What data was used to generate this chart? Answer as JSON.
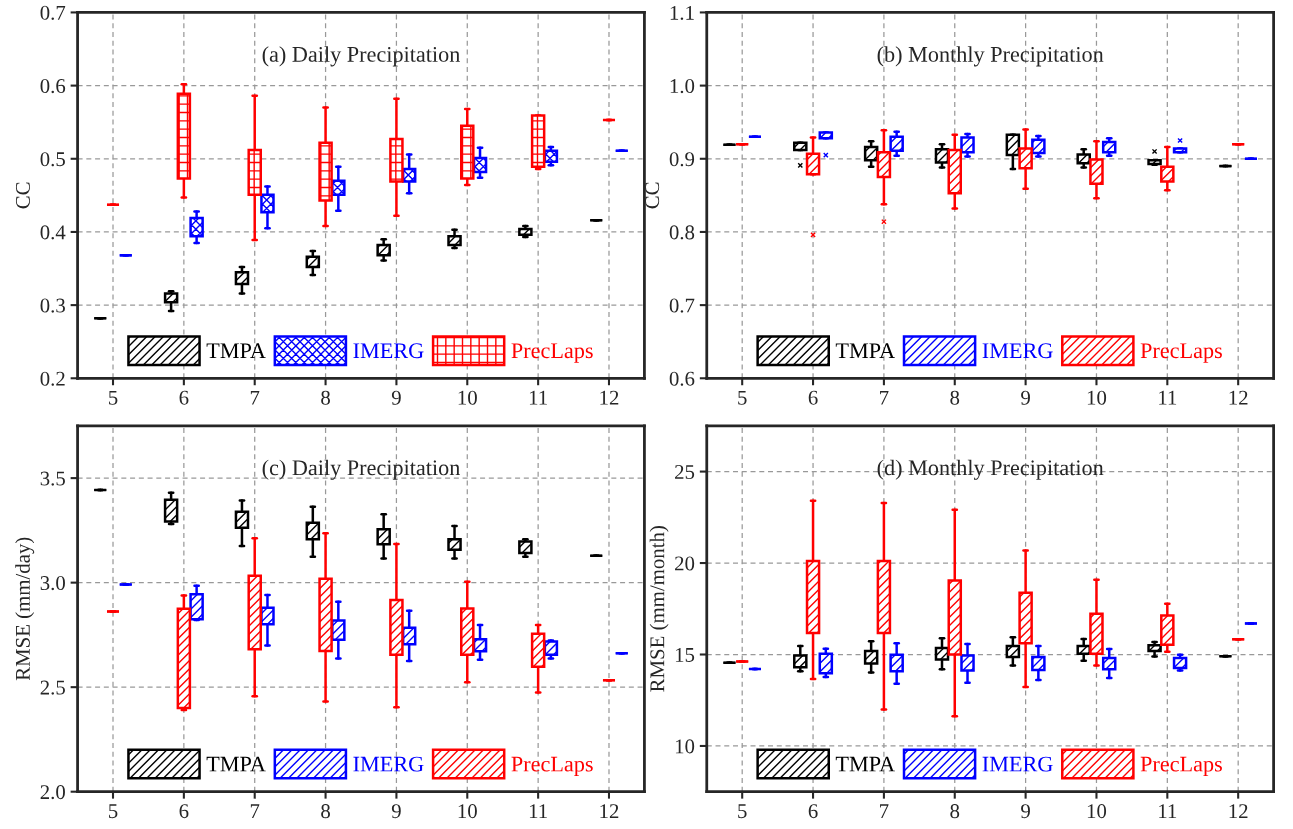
{
  "chart_data": [
    {
      "type": "box",
      "title": "(a) Daily Precipitation",
      "ylabel": "CC",
      "categories": [
        "5",
        "6",
        "7",
        "8",
        "9",
        "10",
        "11",
        "12"
      ],
      "ylim": [
        0.2,
        0.7
      ],
      "yticks": [
        {
          "value": 0.2,
          "label": "0.2"
        },
        {
          "value": 0.3,
          "label": "0.3"
        },
        {
          "value": 0.4,
          "label": "0.4"
        },
        {
          "value": 0.5,
          "label": "0.5"
        },
        {
          "value": 0.6,
          "label": "0.6"
        },
        {
          "value": 0.7,
          "label": "0.7"
        }
      ],
      "grid": true,
      "legend": "bottom",
      "series": [
        {
          "name": "TMPA",
          "color": "#000000",
          "boxes": [
            {
              "low": 0.282,
              "q1": 0.282,
              "median": 0.282,
              "q3": 0.282,
              "high": 0.282
            },
            {
              "low": 0.292,
              "q1": 0.304,
              "median": 0.31,
              "q3": 0.316,
              "high": 0.319
            },
            {
              "low": 0.316,
              "q1": 0.329,
              "median": 0.34,
              "q3": 0.345,
              "high": 0.352
            },
            {
              "low": 0.341,
              "q1": 0.352,
              "median": 0.359,
              "q3": 0.366,
              "high": 0.374
            },
            {
              "low": 0.361,
              "q1": 0.368,
              "median": 0.375,
              "q3": 0.382,
              "high": 0.39
            },
            {
              "low": 0.378,
              "q1": 0.382,
              "median": 0.388,
              "q3": 0.394,
              "high": 0.403
            },
            {
              "low": 0.393,
              "q1": 0.396,
              "median": 0.399,
              "q3": 0.404,
              "high": 0.408
            },
            {
              "low": 0.416,
              "q1": 0.416,
              "median": 0.416,
              "q3": 0.416,
              "high": 0.416
            }
          ]
        },
        {
          "name": "IMERG",
          "color": "#0000ff",
          "boxes": [
            {
              "low": 0.368,
              "q1": 0.368,
              "median": 0.368,
              "q3": 0.368,
              "high": 0.368
            },
            {
              "low": 0.385,
              "q1": 0.394,
              "median": 0.406,
              "q3": 0.419,
              "high": 0.428
            },
            {
              "low": 0.405,
              "q1": 0.427,
              "median": 0.442,
              "q3": 0.451,
              "high": 0.462
            },
            {
              "low": 0.429,
              "q1": 0.451,
              "median": 0.461,
              "q3": 0.47,
              "high": 0.489
            },
            {
              "low": 0.453,
              "q1": 0.469,
              "median": 0.477,
              "q3": 0.486,
              "high": 0.506
            },
            {
              "low": 0.474,
              "q1": 0.482,
              "median": 0.491,
              "q3": 0.501,
              "high": 0.515
            },
            {
              "low": 0.491,
              "q1": 0.496,
              "median": 0.505,
              "q3": 0.511,
              "high": 0.516
            },
            {
              "low": 0.511,
              "q1": 0.511,
              "median": 0.511,
              "q3": 0.511,
              "high": 0.511
            }
          ]
        },
        {
          "name": "PrecLaps",
          "color": "#ff0000",
          "boxes": [
            {
              "low": 0.437,
              "q1": 0.437,
              "median": 0.437,
              "q3": 0.437,
              "high": 0.437
            },
            {
              "low": 0.447,
              "q1": 0.473,
              "median": 0.538,
              "q3": 0.589,
              "high": 0.602
            },
            {
              "low": 0.389,
              "q1": 0.451,
              "median": 0.486,
              "q3": 0.512,
              "high": 0.586
            },
            {
              "low": 0.408,
              "q1": 0.443,
              "median": 0.464,
              "q3": 0.522,
              "high": 0.57
            },
            {
              "low": 0.422,
              "q1": 0.469,
              "median": 0.486,
              "q3": 0.527,
              "high": 0.582
            },
            {
              "low": 0.464,
              "q1": 0.473,
              "median": 0.505,
              "q3": 0.545,
              "high": 0.568
            },
            {
              "low": 0.486,
              "q1": 0.489,
              "median": 0.537,
              "q3": 0.559,
              "high": 0.559
            },
            {
              "low": 0.553,
              "q1": 0.553,
              "median": 0.553,
              "q3": 0.553,
              "high": 0.553
            }
          ]
        }
      ]
    },
    {
      "type": "box",
      "title": "(b) Monthly Precipitation",
      "ylabel": "CC",
      "categories": [
        "5",
        "6",
        "7",
        "8",
        "9",
        "10",
        "11",
        "12"
      ],
      "ylim": [
        0.6,
        1.1
      ],
      "yticks": [
        {
          "value": 0.6,
          "label": "0.6"
        },
        {
          "value": 0.7,
          "label": "0.7"
        },
        {
          "value": 0.8,
          "label": "0.8"
        },
        {
          "value": 0.9,
          "label": "0.9"
        },
        {
          "value": 1.0,
          "label": "1.0"
        },
        {
          "value": 1.1,
          "label": "1.1"
        }
      ],
      "grid": true,
      "legend": "bottom",
      "series": [
        {
          "name": "TMPA",
          "color": "#000000",
          "boxes": [
            {
              "low": 0.919,
              "q1": 0.919,
              "median": 0.919,
              "q3": 0.919,
              "high": 0.919
            },
            {
              "low": 0.912,
              "q1": 0.912,
              "median": 0.919,
              "q3": 0.922,
              "high": 0.922,
              "outliers": [
                0.891
              ]
            },
            {
              "low": 0.889,
              "q1": 0.898,
              "median": 0.909,
              "q3": 0.916,
              "high": 0.924
            },
            {
              "low": 0.888,
              "q1": 0.895,
              "median": 0.905,
              "q3": 0.913,
              "high": 0.92
            },
            {
              "low": 0.886,
              "q1": 0.905,
              "median": 0.91,
              "q3": 0.933,
              "high": 0.933
            },
            {
              "low": 0.888,
              "q1": 0.894,
              "median": 0.901,
              "q3": 0.906,
              "high": 0.913
            },
            {
              "low": 0.892,
              "q1": 0.893,
              "median": 0.896,
              "q3": 0.898,
              "high": 0.898,
              "outliers": [
                0.91
              ]
            },
            {
              "low": 0.89,
              "q1": 0.89,
              "median": 0.89,
              "q3": 0.89,
              "high": 0.89
            }
          ]
        },
        {
          "name": "IMERG",
          "color": "#0000ff",
          "boxes": [
            {
              "low": 0.93,
              "q1": 0.93,
              "median": 0.93,
              "q3": 0.93,
              "high": 0.93
            },
            {
              "low": 0.928,
              "q1": 0.928,
              "median": 0.932,
              "q3": 0.936,
              "high": 0.936,
              "outliers": [
                0.905
              ]
            },
            {
              "low": 0.904,
              "q1": 0.911,
              "median": 0.922,
              "q3": 0.93,
              "high": 0.937
            },
            {
              "low": 0.903,
              "q1": 0.909,
              "median": 0.922,
              "q3": 0.929,
              "high": 0.934
            },
            {
              "low": 0.903,
              "q1": 0.908,
              "median": 0.914,
              "q3": 0.926,
              "high": 0.931
            },
            {
              "low": 0.904,
              "q1": 0.909,
              "median": 0.916,
              "q3": 0.923,
              "high": 0.928
            },
            {
              "low": 0.909,
              "q1": 0.909,
              "median": 0.912,
              "q3": 0.914,
              "high": 0.914,
              "outliers": [
                0.925
              ]
            },
            {
              "low": 0.9,
              "q1": 0.9,
              "median": 0.9,
              "q3": 0.9,
              "high": 0.9
            }
          ]
        },
        {
          "name": "PrecLaps",
          "color": "#ff0000",
          "boxes": [
            {
              "low": 0.92,
              "q1": 0.92,
              "median": 0.92,
              "q3": 0.92,
              "high": 0.92
            },
            {
              "low": 0.879,
              "q1": 0.879,
              "median": 0.888,
              "q3": 0.907,
              "high": 0.929,
              "outliers": [
                0.796
              ]
            },
            {
              "low": 0.838,
              "q1": 0.875,
              "median": 0.889,
              "q3": 0.909,
              "high": 0.939,
              "outliers": [
                0.814
              ]
            },
            {
              "low": 0.832,
              "q1": 0.853,
              "median": 0.892,
              "q3": 0.912,
              "high": 0.933
            },
            {
              "low": 0.859,
              "q1": 0.887,
              "median": 0.892,
              "q3": 0.914,
              "high": 0.94
            },
            {
              "low": 0.846,
              "q1": 0.866,
              "median": 0.884,
              "q3": 0.899,
              "high": 0.924
            },
            {
              "low": 0.857,
              "q1": 0.869,
              "median": 0.875,
              "q3": 0.889,
              "high": 0.916
            },
            {
              "low": 0.92,
              "q1": 0.92,
              "median": 0.92,
              "q3": 0.92,
              "high": 0.92
            }
          ]
        }
      ]
    },
    {
      "type": "box",
      "title": "(c) Daily Precipitation",
      "ylabel": "RMSE (mm/day)",
      "categories": [
        "5",
        "6",
        "7",
        "8",
        "9",
        "10",
        "11",
        "12"
      ],
      "ylim": [
        2.0,
        3.75
      ],
      "yticks": [
        {
          "value": 2.0,
          "label": "2.0"
        },
        {
          "value": 2.5,
          "label": "2.5"
        },
        {
          "value": 3.0,
          "label": "3.0"
        },
        {
          "value": 3.5,
          "label": "3.5"
        }
      ],
      "grid": true,
      "legend": "bottom",
      "series": [
        {
          "name": "TMPA",
          "color": "#000000",
          "boxes": [
            {
              "low": 3.443,
              "q1": 3.443,
              "median": 3.443,
              "q3": 3.443,
              "high": 3.443
            },
            {
              "low": 3.28,
              "q1": 3.292,
              "median": 3.378,
              "q3": 3.397,
              "high": 3.43
            },
            {
              "low": 3.175,
              "q1": 3.262,
              "median": 3.304,
              "q3": 3.339,
              "high": 3.393
            },
            {
              "low": 3.124,
              "q1": 3.207,
              "median": 3.249,
              "q3": 3.286,
              "high": 3.363
            },
            {
              "low": 3.116,
              "q1": 3.184,
              "median": 3.221,
              "q3": 3.255,
              "high": 3.327
            },
            {
              "low": 3.116,
              "q1": 3.157,
              "median": 3.184,
              "q3": 3.208,
              "high": 3.271
            },
            {
              "low": 3.124,
              "q1": 3.142,
              "median": 3.161,
              "q3": 3.197,
              "high": 3.207
            },
            {
              "low": 3.129,
              "q1": 3.129,
              "median": 3.129,
              "q3": 3.129,
              "high": 3.129
            }
          ]
        },
        {
          "name": "IMERG",
          "color": "#0000ff",
          "boxes": [
            {
              "low": 2.991,
              "q1": 2.991,
              "median": 2.991,
              "q3": 2.991,
              "high": 2.991
            },
            {
              "low": 2.821,
              "q1": 2.825,
              "median": 2.908,
              "q3": 2.945,
              "high": 2.985
            },
            {
              "low": 2.699,
              "q1": 2.801,
              "median": 2.834,
              "q3": 2.88,
              "high": 2.941
            },
            {
              "low": 2.637,
              "q1": 2.727,
              "median": 2.773,
              "q3": 2.819,
              "high": 2.908
            },
            {
              "low": 2.625,
              "q1": 2.705,
              "median": 2.742,
              "q3": 2.784,
              "high": 2.865
            },
            {
              "low": 2.631,
              "q1": 2.672,
              "median": 2.705,
              "q3": 2.729,
              "high": 2.797
            },
            {
              "low": 2.637,
              "q1": 2.655,
              "median": 2.681,
              "q3": 2.718,
              "high": 2.723
            },
            {
              "low": 2.662,
              "q1": 2.662,
              "median": 2.662,
              "q3": 2.662,
              "high": 2.662
            }
          ]
        },
        {
          "name": "PrecLaps",
          "color": "#ff0000",
          "boxes": [
            {
              "low": 2.862,
              "q1": 2.862,
              "median": 2.862,
              "q3": 2.862,
              "high": 2.862
            },
            {
              "low": 2.391,
              "q1": 2.4,
              "median": 2.769,
              "q3": 2.875,
              "high": 2.939
            },
            {
              "low": 2.456,
              "q1": 2.681,
              "median": 2.871,
              "q3": 3.033,
              "high": 3.212
            },
            {
              "low": 2.432,
              "q1": 2.673,
              "median": 2.852,
              "q3": 3.018,
              "high": 3.236
            },
            {
              "low": 2.404,
              "q1": 2.655,
              "median": 2.806,
              "q3": 2.917,
              "high": 3.185
            },
            {
              "low": 2.524,
              "q1": 2.655,
              "median": 2.714,
              "q3": 2.876,
              "high": 3.004
            },
            {
              "low": 2.474,
              "q1": 2.598,
              "median": 2.673,
              "q3": 2.755,
              "high": 2.797
            },
            {
              "low": 2.533,
              "q1": 2.533,
              "median": 2.533,
              "q3": 2.533,
              "high": 2.533
            }
          ]
        }
      ]
    },
    {
      "type": "box",
      "title": "(d) Monthly Precipitation",
      "ylabel": "RMSE (mm/month)",
      "categories": [
        "5",
        "6",
        "7",
        "8",
        "9",
        "10",
        "11",
        "12"
      ],
      "ylim": [
        7.5,
        27.5
      ],
      "yticks": [
        10,
        15,
        20,
        25
      ],
      "grid": true,
      "legend": "bottom",
      "series": [
        {
          "name": "TMPA",
          "color": "#000000",
          "boxes": [
            {
              "low": 14.55,
              "q1": 14.55,
              "median": 14.55,
              "q3": 14.55,
              "high": 14.55
            },
            {
              "low": 14.09,
              "q1": 14.3,
              "median": 14.68,
              "q3": 14.94,
              "high": 15.47
            },
            {
              "low": 14.02,
              "q1": 14.51,
              "median": 14.89,
              "q3": 15.19,
              "high": 15.72
            },
            {
              "low": 14.19,
              "q1": 14.72,
              "median": 15.04,
              "q3": 15.36,
              "high": 15.89
            },
            {
              "low": 14.4,
              "q1": 14.87,
              "median": 15.21,
              "q3": 15.47,
              "high": 15.94
            },
            {
              "low": 14.66,
              "q1": 15.04,
              "median": 15.3,
              "q3": 15.47,
              "high": 15.85
            },
            {
              "low": 14.89,
              "q1": 15.19,
              "median": 15.36,
              "q3": 15.51,
              "high": 15.68
            },
            {
              "low": 14.91,
              "q1": 14.91,
              "median": 14.91,
              "q3": 14.91,
              "high": 14.91
            }
          ]
        },
        {
          "name": "IMERG",
          "color": "#0000ff",
          "boxes": [
            {
              "low": 14.21,
              "q1": 14.21,
              "median": 14.21,
              "q3": 14.21,
              "high": 14.21
            },
            {
              "low": 13.77,
              "q1": 13.98,
              "median": 14.51,
              "q3": 15.04,
              "high": 15.32
            },
            {
              "low": 13.4,
              "q1": 14.09,
              "median": 14.51,
              "q3": 14.98,
              "high": 15.62
            },
            {
              "low": 13.45,
              "q1": 14.13,
              "median": 14.47,
              "q3": 14.94,
              "high": 15.57
            },
            {
              "low": 13.6,
              "q1": 14.15,
              "median": 14.47,
              "q3": 14.87,
              "high": 15.47
            },
            {
              "low": 13.72,
              "q1": 14.19,
              "median": 14.51,
              "q3": 14.81,
              "high": 15.3
            },
            {
              "low": 14.13,
              "q1": 14.26,
              "median": 14.51,
              "q3": 14.81,
              "high": 14.98
            },
            {
              "low": 16.7,
              "q1": 16.7,
              "median": 16.7,
              "q3": 16.7,
              "high": 16.7
            }
          ]
        },
        {
          "name": "PrecLaps",
          "color": "#ff0000",
          "boxes": [
            {
              "low": 14.62,
              "q1": 14.62,
              "median": 14.62,
              "q3": 14.62,
              "high": 14.62
            },
            {
              "low": 13.66,
              "q1": 16.17,
              "median": 17.11,
              "q3": 20.11,
              "high": 23.4
            },
            {
              "low": 12.0,
              "q1": 16.17,
              "median": 17.6,
              "q3": 20.11,
              "high": 23.28
            },
            {
              "low": 11.62,
              "q1": 15.0,
              "median": 17.7,
              "q3": 19.04,
              "high": 22.91
            },
            {
              "low": 13.23,
              "q1": 15.62,
              "median": 16.85,
              "q3": 18.38,
              "high": 20.68
            },
            {
              "low": 14.4,
              "q1": 15.04,
              "median": 16.64,
              "q3": 17.23,
              "high": 19.09
            },
            {
              "low": 15.15,
              "q1": 15.53,
              "median": 16.04,
              "q3": 17.13,
              "high": 17.77
            },
            {
              "low": 15.83,
              "q1": 15.83,
              "median": 15.83,
              "q3": 15.83,
              "high": 15.83
            }
          ]
        }
      ]
    }
  ]
}
